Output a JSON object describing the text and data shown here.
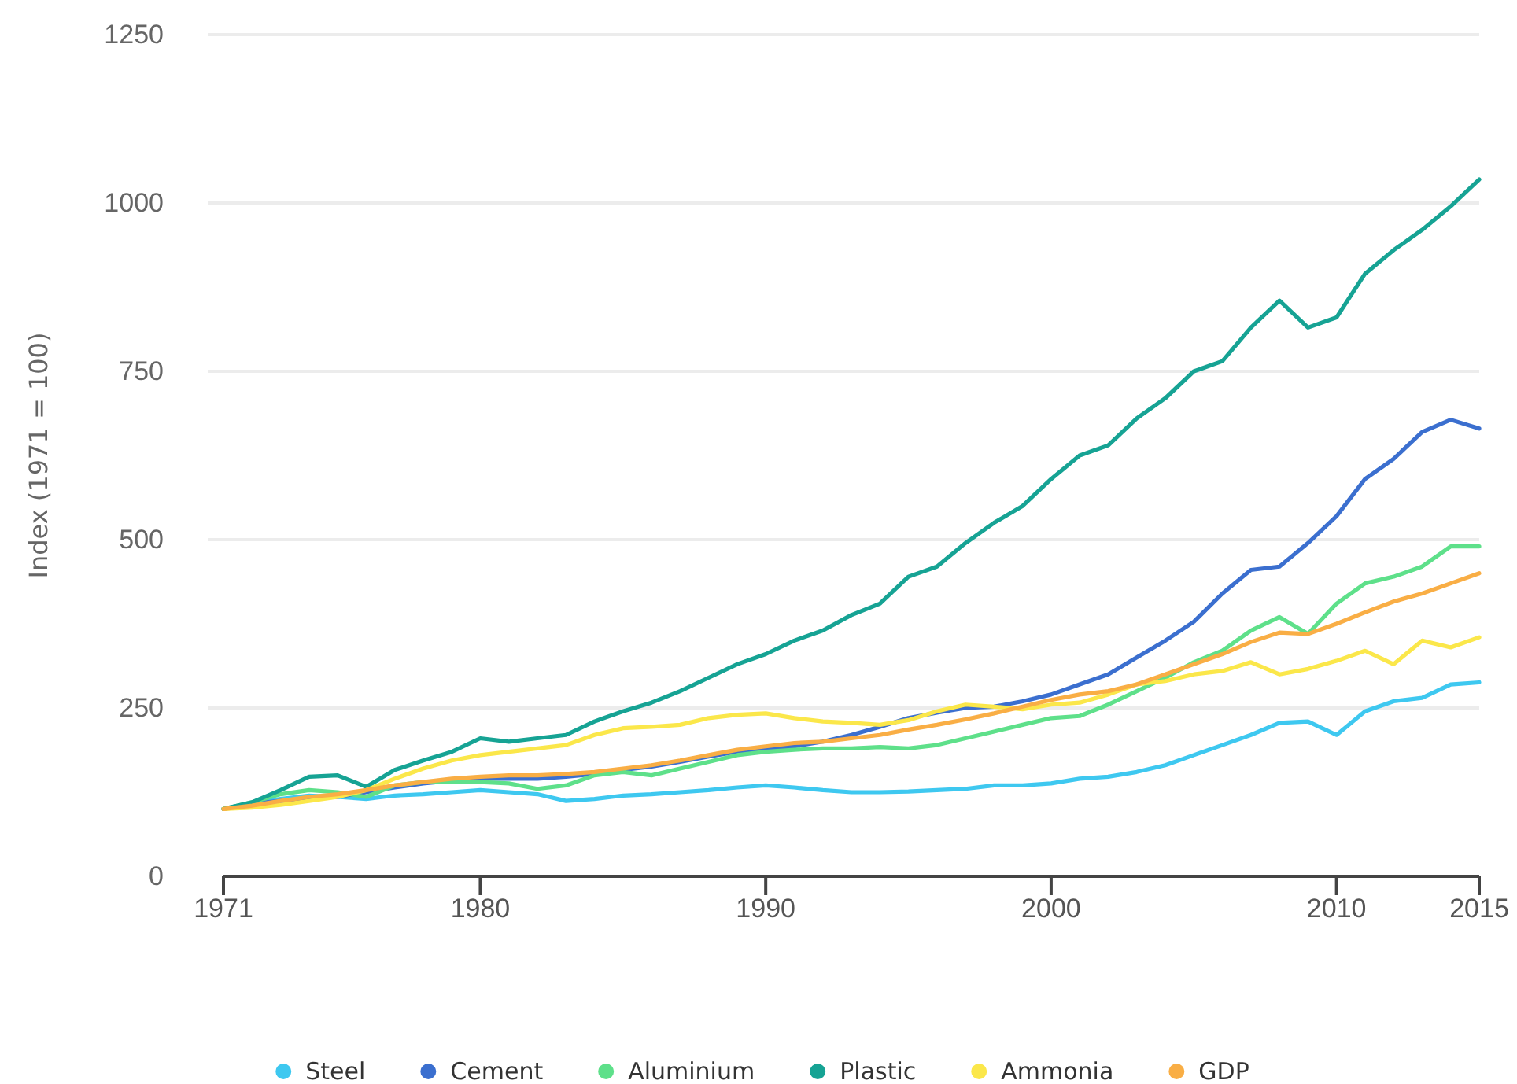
{
  "chart_data": {
    "type": "line",
    "ylabel": "Index (1971 = 100)",
    "x": [
      1971,
      1972,
      1973,
      1974,
      1975,
      1976,
      1977,
      1978,
      1979,
      1980,
      1981,
      1982,
      1983,
      1984,
      1985,
      1986,
      1987,
      1988,
      1989,
      1990,
      1991,
      1992,
      1993,
      1994,
      1995,
      1996,
      1997,
      1998,
      1999,
      2000,
      2001,
      2002,
      2003,
      2004,
      2005,
      2006,
      2007,
      2008,
      2009,
      2010,
      2011,
      2012,
      2013,
      2014,
      2015
    ],
    "xlim": [
      1971,
      2015
    ],
    "xticks": [
      1971,
      1980,
      1990,
      2000,
      2010,
      2015
    ],
    "ylim": [
      0,
      1250
    ],
    "yticks": [
      0,
      250,
      500,
      750,
      1000,
      1250
    ],
    "grid": "y",
    "legend": "bottom",
    "marker": "none",
    "line_style": "solid",
    "series": [
      {
        "name": "Steel",
        "color": "#3ec8f0",
        "values": [
          100,
          108,
          115,
          120,
          118,
          115,
          120,
          122,
          125,
          128,
          125,
          122,
          112,
          115,
          120,
          122,
          125,
          128,
          132,
          135,
          132,
          128,
          125,
          125,
          126,
          128,
          130,
          135,
          135,
          138,
          145,
          148,
          155,
          165,
          180,
          195,
          210,
          228,
          230,
          210,
          245,
          260,
          265,
          285,
          288
        ]
      },
      {
        "name": "Cement",
        "color": "#3b6fcf",
        "values": [
          100,
          108,
          112,
          115,
          118,
          125,
          132,
          138,
          142,
          145,
          145,
          145,
          148,
          152,
          158,
          163,
          170,
          178,
          185,
          190,
          193,
          200,
          210,
          222,
          235,
          243,
          250,
          252,
          260,
          270,
          285,
          300,
          325,
          350,
          378,
          420,
          455,
          460,
          495,
          535,
          590,
          620,
          660,
          678,
          665
        ]
      },
      {
        "name": "Aluminium",
        "color": "#5ee08a",
        "values": [
          100,
          110,
          122,
          128,
          125,
          118,
          135,
          140,
          140,
          140,
          138,
          130,
          135,
          150,
          155,
          150,
          160,
          170,
          180,
          185,
          188,
          190,
          190,
          192,
          190,
          195,
          205,
          215,
          225,
          235,
          238,
          255,
          275,
          295,
          318,
          335,
          365,
          385,
          360,
          405,
          435,
          445,
          460,
          490,
          490
        ]
      },
      {
        "name": "Plastic",
        "color": "#16a394",
        "values": [
          100,
          110,
          128,
          148,
          150,
          133,
          158,
          172,
          185,
          205,
          200,
          205,
          210,
          230,
          245,
          258,
          275,
          295,
          315,
          330,
          350,
          365,
          388,
          405,
          445,
          460,
          495,
          525,
          550,
          590,
          625,
          640,
          680,
          710,
          750,
          765,
          815,
          855,
          815,
          830,
          895,
          930,
          960,
          995,
          1035
        ]
      },
      {
        "name": "Ammonia",
        "color": "#fbe74a",
        "values": [
          100,
          102,
          106,
          112,
          118,
          128,
          145,
          160,
          172,
          180,
          185,
          190,
          195,
          210,
          220,
          222,
          225,
          235,
          240,
          242,
          235,
          230,
          228,
          225,
          232,
          245,
          255,
          252,
          248,
          255,
          258,
          270,
          285,
          290,
          300,
          305,
          318,
          300,
          308,
          320,
          335,
          315,
          350,
          340,
          355
        ]
      },
      {
        "name": "GDP",
        "color": "#f9ae45",
        "values": [
          100,
          105,
          112,
          118,
          122,
          128,
          135,
          140,
          145,
          148,
          150,
          150,
          152,
          155,
          160,
          165,
          172,
          180,
          188,
          193,
          198,
          200,
          205,
          210,
          218,
          225,
          233,
          242,
          252,
          262,
          270,
          275,
          285,
          300,
          315,
          330,
          348,
          362,
          360,
          375,
          392,
          408,
          420,
          435,
          450
        ]
      }
    ]
  }
}
